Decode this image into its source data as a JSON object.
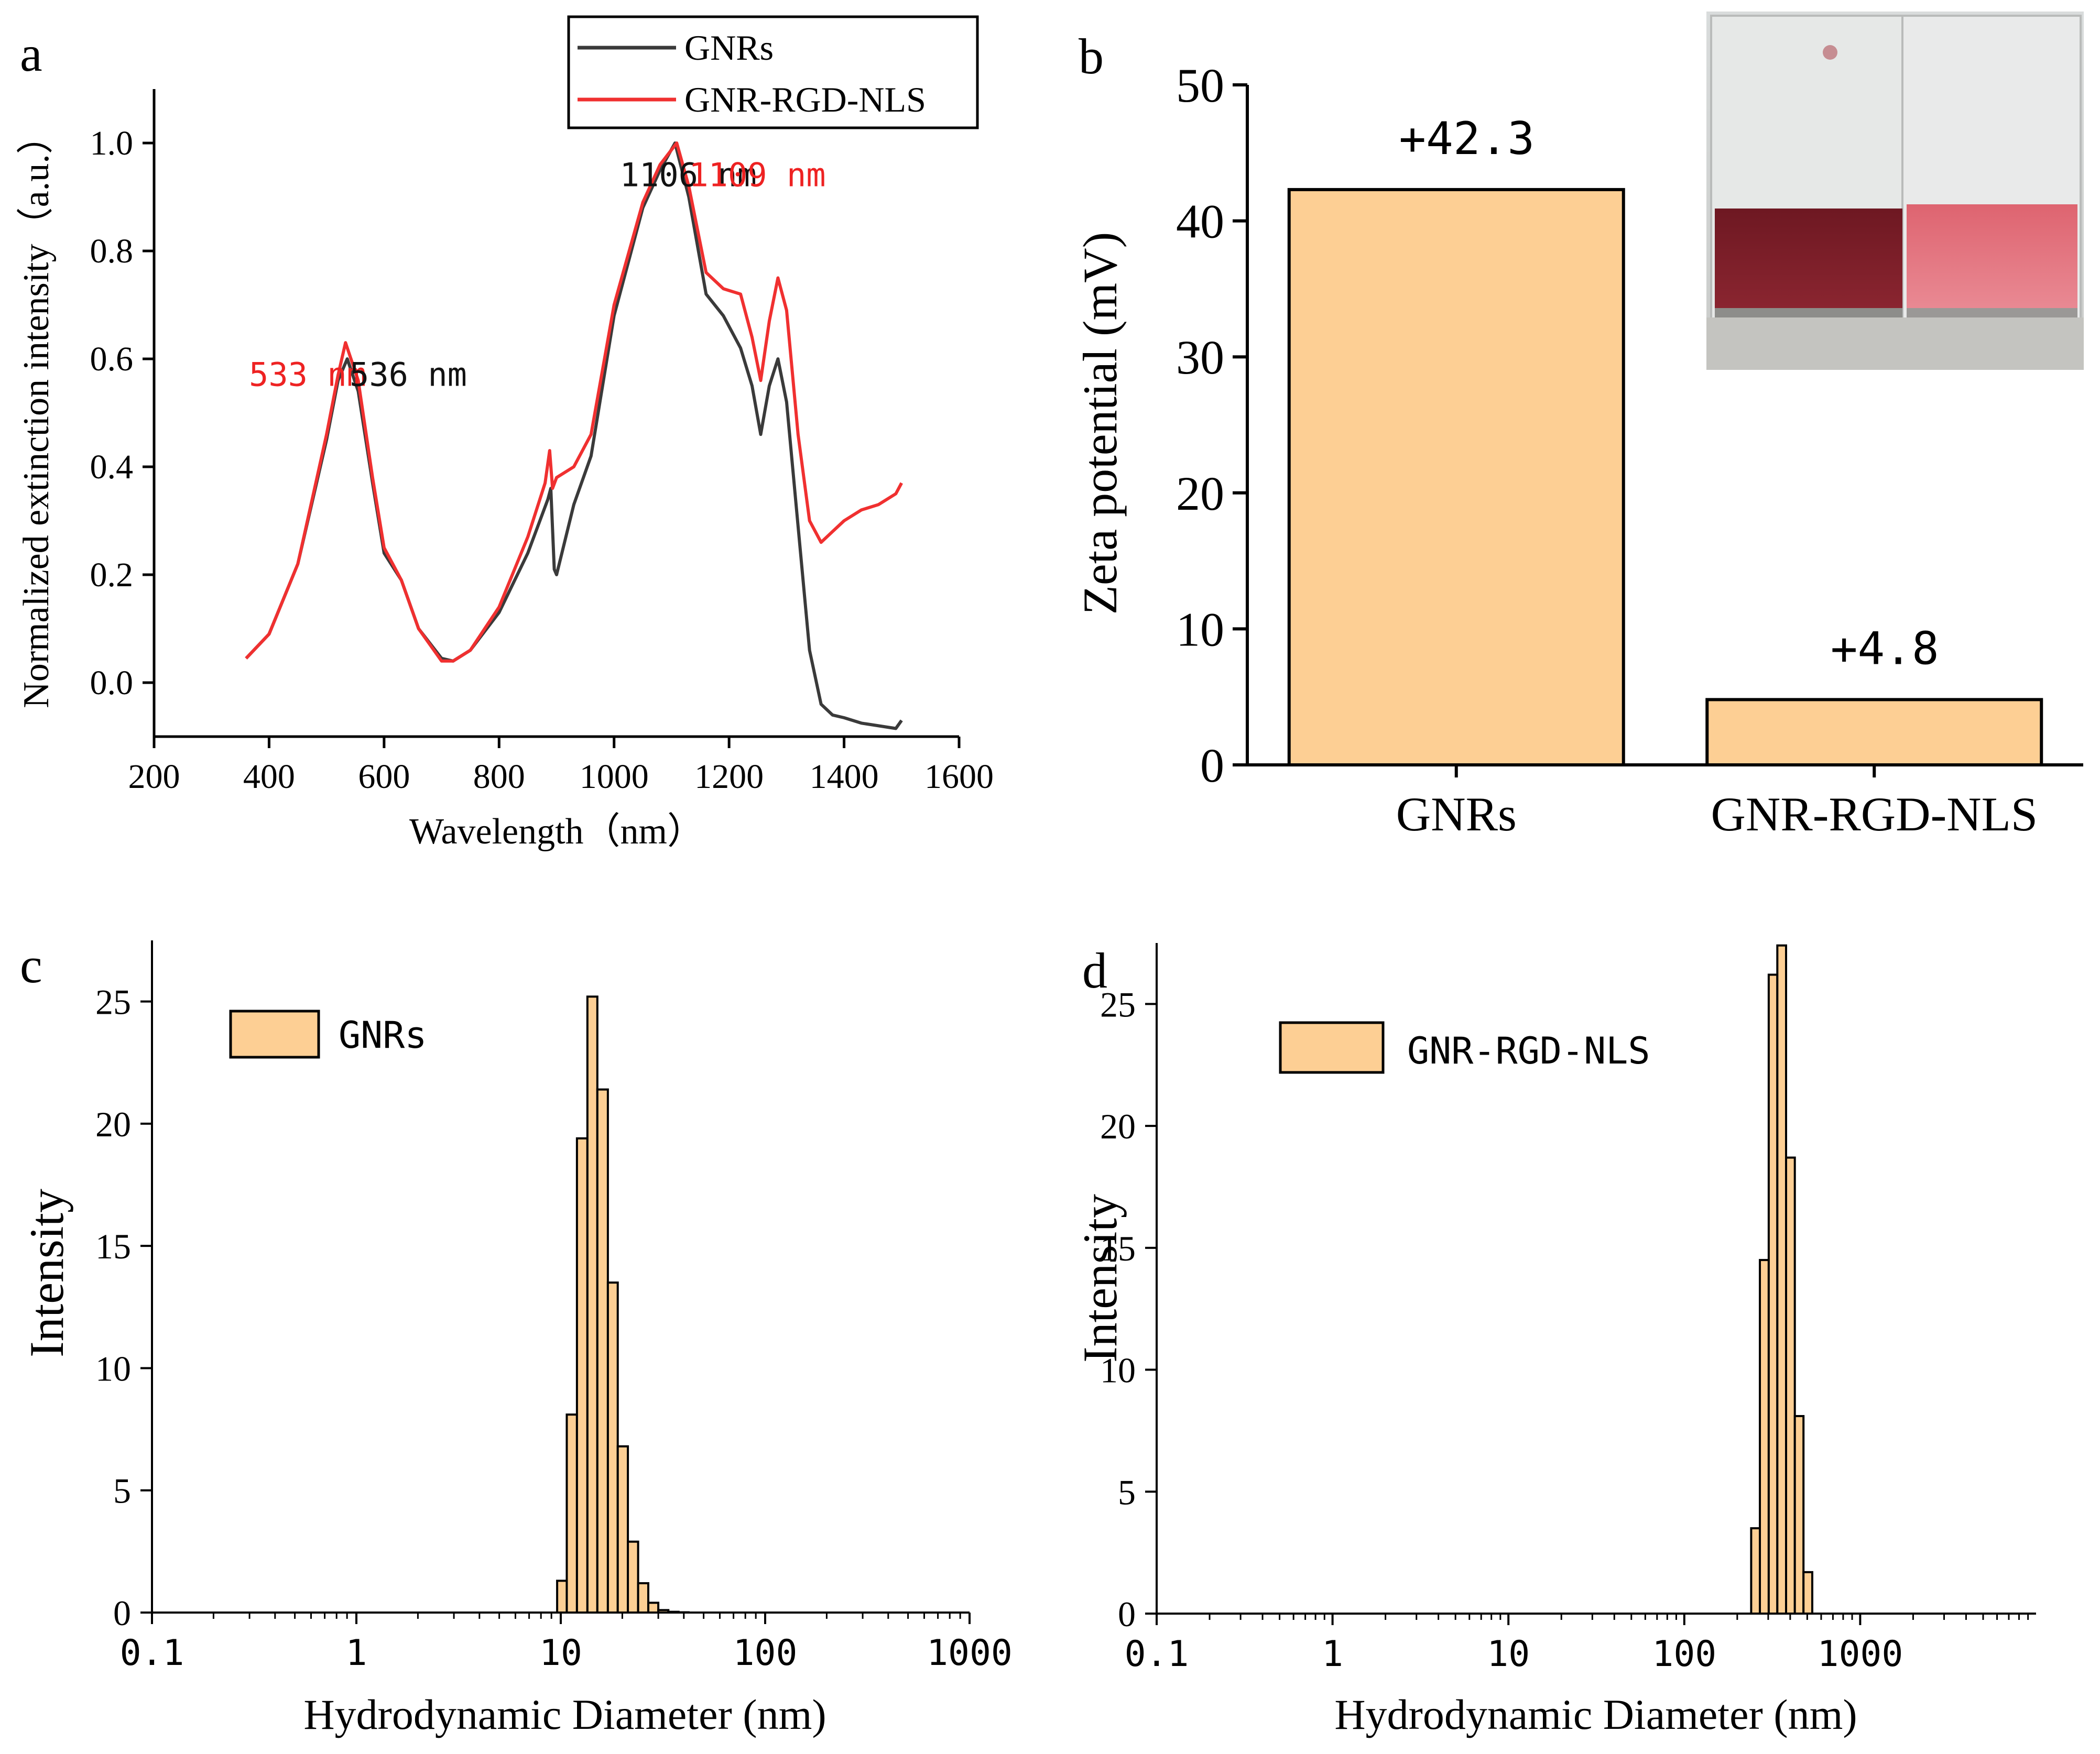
{
  "colors": {
    "black_series": "#3a3a3a",
    "red_series": "#f03030",
    "bar_fill": "#fdcf94",
    "bar_stroke": "#000000",
    "red_text": "#ee2222"
  },
  "chart_data": [
    {
      "panel": "a",
      "type": "line",
      "title": "",
      "xlabel": "Wavelength（nm）",
      "ylabel": "Normalized extinction intensity（a.u.）",
      "xlim": [
        200,
        1600
      ],
      "ylim": [
        -0.1,
        1.1
      ],
      "xticks": [
        200,
        400,
        600,
        800,
        1000,
        1200,
        1400,
        1600
      ],
      "yticks": [
        0.0,
        0.2,
        0.4,
        0.6,
        0.8,
        1.0
      ],
      "legend": {
        "placement": "top-right",
        "entries": [
          "GNRs",
          "GNR-RGD-NLS"
        ]
      },
      "series": [
        {
          "name": "GNRs",
          "color": "#3a3a3a",
          "x": [
            360,
            400,
            450,
            500,
            520,
            536,
            555,
            580,
            600,
            630,
            660,
            700,
            720,
            750,
            800,
            850,
            885,
            890,
            896,
            900,
            930,
            960,
            1000,
            1050,
            1080,
            1106,
            1130,
            1160,
            1190,
            1220,
            1240,
            1255,
            1270,
            1285,
            1300,
            1320,
            1340,
            1360,
            1380,
            1400,
            1430,
            1460,
            1490,
            1500
          ],
          "y": [
            0.045,
            0.09,
            0.22,
            0.45,
            0.56,
            0.6,
            0.54,
            0.37,
            0.24,
            0.19,
            0.1,
            0.045,
            0.04,
            0.06,
            0.13,
            0.24,
            0.34,
            0.36,
            0.21,
            0.2,
            0.33,
            0.42,
            0.68,
            0.88,
            0.95,
            1.0,
            0.9,
            0.72,
            0.68,
            0.62,
            0.55,
            0.46,
            0.55,
            0.6,
            0.52,
            0.29,
            0.06,
            -0.04,
            -0.06,
            -0.065,
            -0.075,
            -0.08,
            -0.085,
            -0.07
          ]
        },
        {
          "name": "GNR-RGD-NLS",
          "color": "#f03030",
          "x": [
            360,
            400,
            450,
            500,
            520,
            533,
            555,
            580,
            600,
            630,
            660,
            700,
            720,
            750,
            800,
            850,
            880,
            888,
            893,
            900,
            930,
            960,
            1000,
            1050,
            1080,
            1109,
            1130,
            1160,
            1190,
            1220,
            1240,
            1255,
            1270,
            1285,
            1300,
            1320,
            1340,
            1360,
            1380,
            1400,
            1430,
            1460,
            1490,
            1500
          ],
          "y": [
            0.045,
            0.09,
            0.22,
            0.46,
            0.57,
            0.63,
            0.56,
            0.38,
            0.25,
            0.19,
            0.1,
            0.04,
            0.04,
            0.06,
            0.14,
            0.27,
            0.37,
            0.43,
            0.36,
            0.38,
            0.4,
            0.46,
            0.7,
            0.89,
            0.96,
            1.0,
            0.92,
            0.76,
            0.73,
            0.72,
            0.64,
            0.56,
            0.67,
            0.75,
            0.69,
            0.46,
            0.3,
            0.26,
            0.28,
            0.3,
            0.32,
            0.33,
            0.35,
            0.37
          ]
        }
      ],
      "annotations": [
        {
          "text": "533 nm",
          "color": "red",
          "x": 365,
          "y": 0.55
        },
        {
          "text": "536 nm",
          "color": "black",
          "x": 540,
          "y": 0.55
        },
        {
          "text": "1106 nm",
          "color": "black",
          "x": 1010,
          "y": 0.92
        },
        {
          "text": "1109 nm",
          "color": "red",
          "x": 1130,
          "y": 0.92
        }
      ]
    },
    {
      "panel": "b",
      "type": "bar",
      "title": "",
      "xlabel": "",
      "ylabel": "Zeta potential (mV)",
      "categories": [
        "GNRs",
        "GNR-RGD-NLS"
      ],
      "values": [
        42.3,
        4.8
      ],
      "data_labels": [
        "+42.3",
        "+4.8"
      ],
      "ylim": [
        0,
        50
      ],
      "yticks": [
        0,
        10,
        20,
        30,
        40,
        50
      ],
      "inset": "photo of two vials: dark red GNRs solution and pink GNR-RGD-NLS solution"
    },
    {
      "panel": "c",
      "type": "bar",
      "title": "",
      "xlabel": "Hydrodynamic Diameter (nm)",
      "ylabel": "Intensity",
      "xscale": "log",
      "xlim": [
        0.1,
        1000
      ],
      "ylim": [
        0,
        27.5
      ],
      "xticks": [
        0.1,
        1,
        10,
        100,
        1000
      ],
      "xtick_labels": [
        "0.1",
        "1",
        "10",
        "100",
        "1000"
      ],
      "yticks": [
        0,
        5,
        10,
        15,
        20,
        25
      ],
      "legend": {
        "placement": "top-left",
        "entries": [
          "GNRs"
        ]
      },
      "series": [
        {
          "name": "GNRs",
          "bin_edges": [
            9.6,
            10.7,
            12.0,
            13.5,
            15.1,
            17.0,
            19.0,
            21.3,
            23.9,
            26.8,
            30.0,
            33.6,
            37.7,
            42.2
          ],
          "values": [
            1.3,
            8.1,
            19.4,
            25.2,
            21.4,
            13.5,
            6.8,
            2.9,
            1.2,
            0.4,
            0.1,
            0.03,
            0.01
          ]
        }
      ]
    },
    {
      "panel": "d",
      "type": "bar",
      "title": "",
      "xlabel": "Hydrodynamic Diameter (nm)",
      "ylabel": "Intensity",
      "xscale": "log",
      "xlim": [
        0.1,
        10000
      ],
      "ylim": [
        0,
        27.5
      ],
      "xticks": [
        0.1,
        1,
        10,
        100,
        1000
      ],
      "xtick_labels": [
        "0.1",
        "1",
        "10",
        "100",
        "1000"
      ],
      "yticks": [
        0,
        5,
        10,
        15,
        20,
        25
      ],
      "legend": {
        "placement": "top-left",
        "entries": [
          "GNR-RGD-NLS"
        ]
      },
      "series": [
        {
          "name": "GNR-RGD-NLS",
          "bin_edges": [
            240,
            269,
            302,
            338,
            379,
            425,
            476,
            534,
            598
          ],
          "values": [
            3.5,
            14.5,
            26.2,
            27.4,
            18.7,
            8.1,
            1.7,
            0.0
          ]
        }
      ]
    }
  ],
  "panel_labels": {
    "a": "a",
    "b": "b",
    "c": "c",
    "d": "d"
  }
}
